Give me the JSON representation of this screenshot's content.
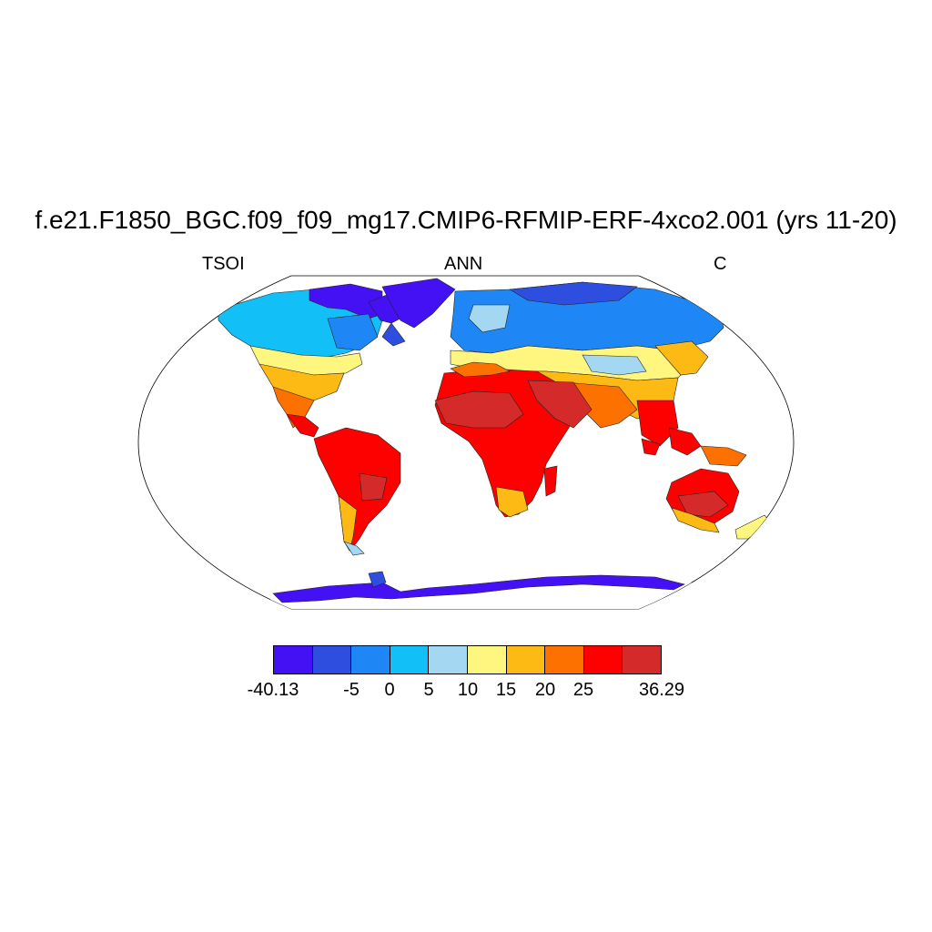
{
  "title": "f.e21.F1850_BGC.f09_f09_mg17.CMIP6-RFMIP-ERF-4xco2.001 (yrs 11-20)",
  "left_label": "TSOI",
  "center_label": "ANN",
  "right_label": "C",
  "colorbar": {
    "colors": [
      "#4411f5",
      "#2e4ee0",
      "#1f87f5",
      "#13bff7",
      "#a4d8f2",
      "#fef67e",
      "#fdba14",
      "#fd7100",
      "#fd0000",
      "#d42a2a"
    ],
    "labels": [
      "-40.13",
      "-5",
      "0",
      "5",
      "10",
      "15",
      "20",
      "25",
      "36.29"
    ]
  }
}
